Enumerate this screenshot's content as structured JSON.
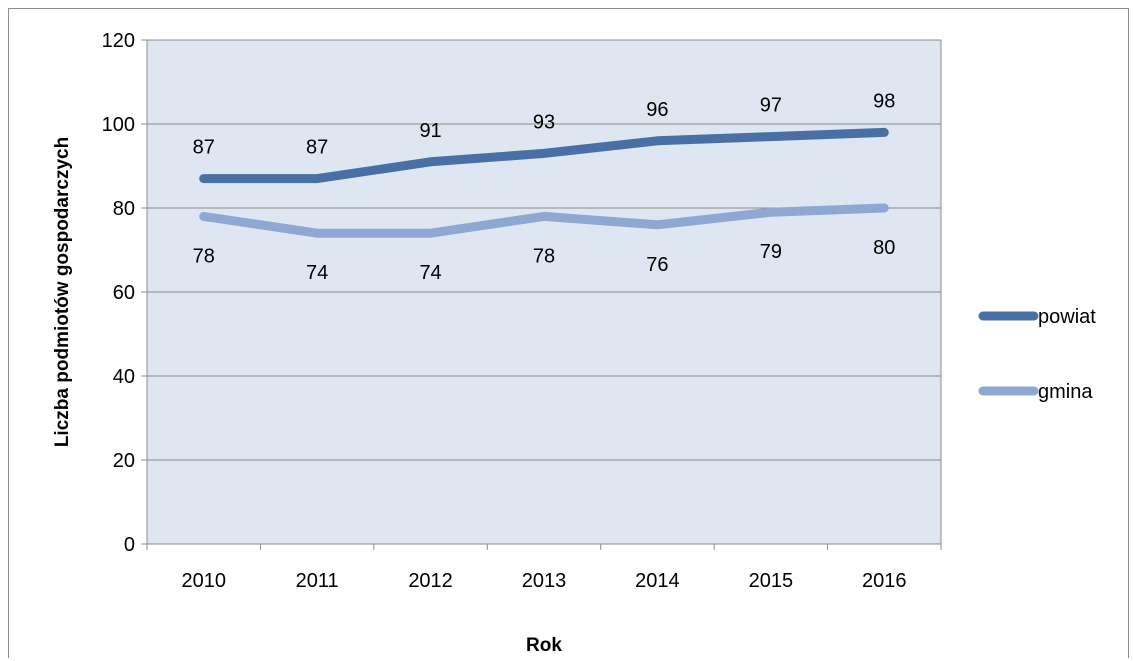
{
  "chart_data": {
    "type": "line",
    "categories": [
      "2010",
      "2011",
      "2012",
      "2013",
      "2014",
      "2015",
      "2016"
    ],
    "series": [
      {
        "name": "powiat",
        "values": [
          87,
          87,
          91,
          93,
          96,
          97,
          98
        ],
        "color": "#4a6fa5"
      },
      {
        "name": "gmina",
        "values": [
          78,
          74,
          74,
          78,
          76,
          79,
          80
        ],
        "color": "#8ea8d2"
      }
    ],
    "xlabel": "Rok",
    "ylabel": "Liczba podmiotów gospodarczych",
    "ylim": [
      0,
      120
    ],
    "yticks": [
      0,
      20,
      40,
      60,
      80,
      100,
      120
    ],
    "grid": true,
    "plot_background": "#dde6f1",
    "legend_position": "right"
  }
}
